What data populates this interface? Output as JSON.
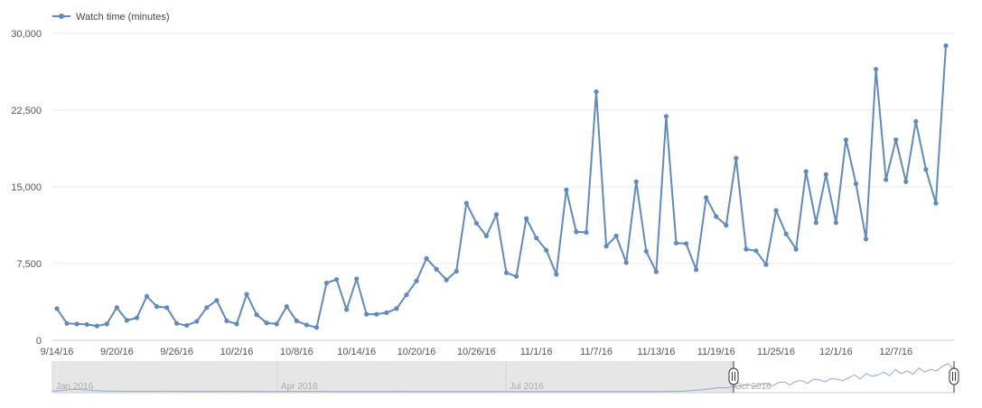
{
  "chart_data": {
    "type": "line",
    "legend": {
      "label": "Watch time (minutes)",
      "placement": "top-left"
    },
    "colors": {
      "series": "#5f8ac0",
      "navigator_shade": "#e6e6e6",
      "grid": "#e8e8e8"
    },
    "ylim": [
      0,
      30000
    ],
    "yticks": [
      {
        "value": 0,
        "label": "0"
      },
      {
        "value": 7500,
        "label": "7,500"
      },
      {
        "value": 15000,
        "label": "15,000"
      },
      {
        "value": 22500,
        "label": "22,500"
      },
      {
        "value": 30000,
        "label": "30,000"
      }
    ],
    "xticks": [
      {
        "index": 0,
        "label": "9/14/16"
      },
      {
        "index": 6,
        "label": "9/20/16"
      },
      {
        "index": 12,
        "label": "9/26/16"
      },
      {
        "index": 18,
        "label": "10/2/16"
      },
      {
        "index": 24,
        "label": "10/8/16"
      },
      {
        "index": 30,
        "label": "10/14/16"
      },
      {
        "index": 36,
        "label": "10/20/16"
      },
      {
        "index": 42,
        "label": "10/26/16"
      },
      {
        "index": 48,
        "label": "11/1/16"
      },
      {
        "index": 54,
        "label": "11/7/16"
      },
      {
        "index": 60,
        "label": "11/13/16"
      },
      {
        "index": 66,
        "label": "11/19/16"
      },
      {
        "index": 72,
        "label": "11/25/16"
      },
      {
        "index": 78,
        "label": "12/1/16"
      },
      {
        "index": 84,
        "label": "12/7/16"
      }
    ],
    "series": [
      {
        "name": "Watch time (minutes)",
        "values": [
          3100,
          1650,
          1600,
          1550,
          1400,
          1600,
          3200,
          1950,
          2200,
          4300,
          3300,
          3200,
          1650,
          1450,
          1850,
          3200,
          3900,
          1900,
          1600,
          4500,
          2500,
          1700,
          1600,
          3300,
          1900,
          1500,
          1250,
          5600,
          5950,
          3000,
          6000,
          2550,
          2550,
          2700,
          3100,
          4450,
          5800,
          8000,
          6950,
          5900,
          6750,
          13400,
          11450,
          10200,
          12300,
          6600,
          6250,
          11900,
          10000,
          8800,
          6450,
          14700,
          10600,
          10550,
          24300,
          9200,
          10200,
          7600,
          15500,
          8700,
          6700,
          21900,
          9500,
          9450,
          6900,
          13950,
          12100,
          11250,
          17800,
          8900,
          8750,
          7400,
          12700,
          10400,
          8900,
          16500,
          11500,
          16200,
          11500,
          19600,
          15300,
          9900,
          26500,
          15700,
          19600,
          15500,
          21400,
          16700,
          13400,
          28800
        ]
      }
    ],
    "navigator": {
      "labels": [
        "Jan 2016",
        "Apr 2016",
        "Jul 2016",
        "Oct 2016"
      ],
      "values": [
        400,
        700,
        1100,
        1600,
        1800,
        1500,
        1200,
        900,
        700,
        500,
        450,
        400,
        380,
        350,
        330,
        320,
        300,
        350,
        400,
        380,
        360,
        340,
        300,
        280,
        260,
        250,
        240,
        260,
        280,
        300,
        320,
        300,
        280,
        260,
        240,
        230,
        220,
        210,
        200,
        220,
        240,
        260,
        280,
        300,
        280,
        260,
        240,
        220,
        200,
        190,
        180,
        170,
        160,
        150,
        160,
        170,
        180,
        200,
        220,
        240,
        220,
        200,
        180,
        160,
        150,
        140,
        130,
        120,
        110,
        120,
        130,
        140,
        150,
        160,
        150,
        140,
        130,
        120,
        110,
        100,
        110,
        120,
        130,
        140,
        150,
        160,
        170,
        160,
        150,
        140,
        130,
        120,
        110,
        100,
        120,
        140,
        160,
        150,
        140,
        130,
        120,
        110,
        100,
        150,
        200,
        250,
        300,
        400,
        500,
        800,
        1200,
        1500,
        2000,
        2500,
        3000,
        2800,
        3500,
        4000,
        4500,
        5000,
        3500,
        5500,
        6000,
        4200,
        6500,
        7000,
        5000,
        7500,
        8000,
        6000,
        9000,
        8500,
        7000,
        9500,
        9000,
        8000,
        10000,
        12000,
        9000,
        13000,
        11000,
        12000,
        14000,
        11500,
        16000,
        13000,
        15000,
        12500,
        17000,
        14000,
        16000,
        15000,
        18000,
        20000,
        16000
      ]
    }
  }
}
